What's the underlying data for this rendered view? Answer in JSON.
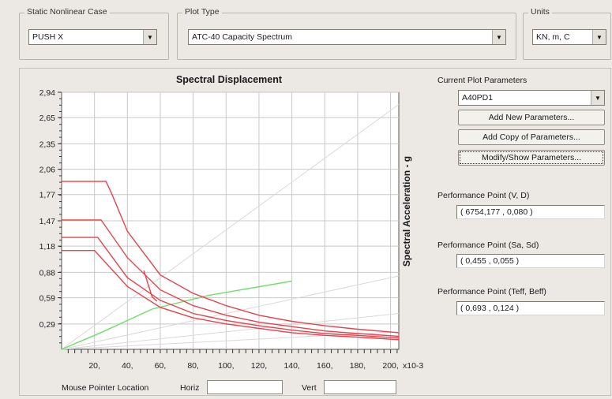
{
  "static_case": {
    "label": "Static Nonlinear Case",
    "value": "PUSH X"
  },
  "plot_type": {
    "label": "Plot Type",
    "value": "ATC-40 Capacity Spectrum"
  },
  "units": {
    "label": "Units",
    "value": "KN, m, C"
  },
  "params": {
    "label": "Current Plot Parameters",
    "value": "A40PD1",
    "add_new": "Add New Parameters...",
    "add_copy": "Add Copy of Parameters...",
    "modify": "Modify/Show Parameters..."
  },
  "perf": {
    "vd_label": "Performance Point (V, D)",
    "vd_value": "( 6754,177 , 0,080 )",
    "sasd_label": "Performance Point (Sa, Sd)",
    "sasd_value": "( 0,455 , 0,055 )",
    "teff_label": "Performance Point (Teff, Beff)",
    "teff_value": "( 0,693 , 0,124 )"
  },
  "mouse": {
    "label": "Mouse Pointer Location",
    "horiz": "Horiz",
    "vert": "Vert"
  },
  "colors": {
    "demand": "#e8424c",
    "capacity": "#6ee06a",
    "period": "#d9d9d9",
    "grid": "#c8c8c8"
  },
  "chart_data": {
    "type": "line",
    "title": "Spectral Displacement",
    "xlabel": "",
    "ylabel": "Spectral Acceleration - g",
    "x_multiplier_label": "x10-3",
    "xlim": [
      0,
      205
    ],
    "ylim": [
      0,
      2.94
    ],
    "x_ticks": [
      20,
      40,
      60,
      80,
      100,
      120,
      140,
      160,
      180,
      200
    ],
    "x_tick_labels": [
      "20,",
      "40,",
      "60,",
      "80,",
      "100,",
      "120,",
      "140,",
      "160,",
      "180,",
      "200,"
    ],
    "y_ticks": [
      0.29,
      0.59,
      0.88,
      1.18,
      1.47,
      1.77,
      2.06,
      2.35,
      2.65,
      2.94
    ],
    "y_tick_labels": [
      "0,29",
      "0,59",
      "0,88",
      "1,18",
      "1,47",
      "1,77",
      "2,06",
      "2,35",
      "2,65",
      "2,94"
    ],
    "grid": true,
    "series": [
      {
        "role": "demand",
        "points": [
          [
            0,
            1.92
          ],
          [
            2,
            1.92
          ],
          [
            27,
            1.92
          ],
          [
            30,
            1.8
          ],
          [
            40,
            1.35
          ],
          [
            60,
            0.85
          ],
          [
            80,
            0.64
          ],
          [
            100,
            0.5
          ],
          [
            120,
            0.39
          ],
          [
            140,
            0.32
          ],
          [
            160,
            0.27
          ],
          [
            180,
            0.23
          ],
          [
            205,
            0.19
          ]
        ]
      },
      {
        "role": "demand",
        "points": [
          [
            0,
            1.48
          ],
          [
            2,
            1.48
          ],
          [
            24,
            1.48
          ],
          [
            40,
            1.05
          ],
          [
            60,
            0.68
          ],
          [
            80,
            0.5
          ],
          [
            100,
            0.39
          ],
          [
            120,
            0.31
          ],
          [
            140,
            0.26
          ],
          [
            160,
            0.21
          ],
          [
            180,
            0.18
          ],
          [
            205,
            0.15
          ]
        ]
      },
      {
        "role": "demand",
        "points": [
          [
            0,
            1.28
          ],
          [
            2,
            1.28
          ],
          [
            22,
            1.28
          ],
          [
            40,
            0.82
          ],
          [
            60,
            0.56
          ],
          [
            80,
            0.41
          ],
          [
            100,
            0.33
          ],
          [
            120,
            0.27
          ],
          [
            140,
            0.22
          ],
          [
            160,
            0.18
          ],
          [
            180,
            0.16
          ],
          [
            205,
            0.13
          ]
        ]
      },
      {
        "role": "demand",
        "points": [
          [
            0,
            1.13
          ],
          [
            2,
            1.13
          ],
          [
            20,
            1.13
          ],
          [
            40,
            0.72
          ],
          [
            60,
            0.48
          ],
          [
            80,
            0.36
          ],
          [
            100,
            0.29
          ],
          [
            120,
            0.24
          ],
          [
            140,
            0.19
          ],
          [
            160,
            0.16
          ],
          [
            180,
            0.14
          ],
          [
            205,
            0.11
          ]
        ]
      },
      {
        "role": "demand",
        "points": [
          [
            50,
            0.9
          ],
          [
            55,
            0.6
          ],
          [
            58,
            0.55
          ]
        ]
      },
      {
        "role": "capacity",
        "points": [
          [
            0,
            0
          ],
          [
            25,
            0.2
          ],
          [
            55,
            0.46
          ],
          [
            90,
            0.62
          ],
          [
            140,
            0.78
          ]
        ]
      },
      {
        "role": "period",
        "points": [
          [
            0,
            0
          ],
          [
            205,
            2.8
          ]
        ]
      },
      {
        "role": "period",
        "points": [
          [
            0,
            0
          ],
          [
            205,
            0.84
          ]
        ]
      },
      {
        "role": "period",
        "points": [
          [
            0,
            0
          ],
          [
            205,
            0.41
          ]
        ]
      },
      {
        "role": "period",
        "points": [
          [
            0,
            0
          ],
          [
            205,
            0.2
          ]
        ]
      }
    ]
  }
}
